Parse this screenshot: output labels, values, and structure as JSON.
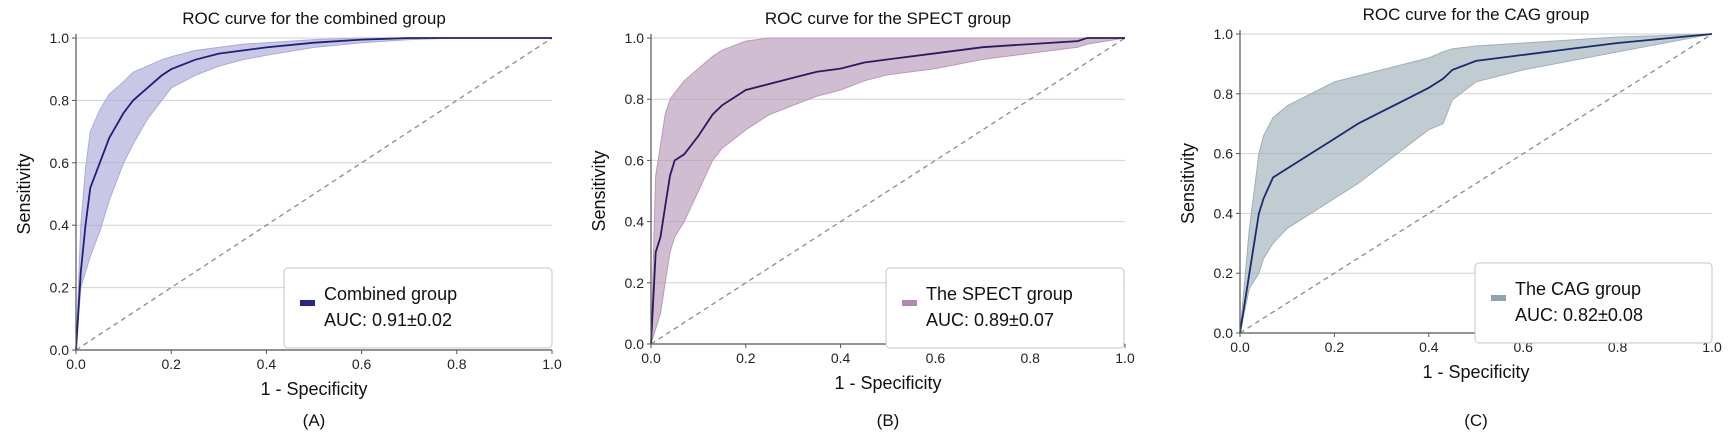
{
  "chart_data": [
    {
      "type": "line",
      "title": "ROC curve  for the combined group",
      "xlabel": "1 - Specificity",
      "ylabel": "Sensitivity",
      "panel_label": "(A)",
      "xlim": [
        0,
        1
      ],
      "ylim": [
        0,
        1
      ],
      "xticks": [
        "0.0",
        "0.2",
        "0.4",
        "0.6",
        "0.8",
        "1.0"
      ],
      "yticks": [
        "0.0",
        "0.2",
        "0.4",
        "0.6",
        "0.8",
        "1.0"
      ],
      "grid": "horizontal",
      "legend_position": "lower-right",
      "legend": {
        "name": "Combined group",
        "auc": "AUC: 0.91±0.02"
      },
      "colors": {
        "line": "#1f1f7a",
        "band": "#aaaad8",
        "legend_swatch": "#27278a"
      },
      "series": [
        {
          "x": [
            0.0,
            0.01,
            0.02,
            0.03,
            0.05,
            0.07,
            0.1,
            0.12,
            0.15,
            0.18,
            0.2,
            0.25,
            0.3,
            0.35,
            0.4,
            0.5,
            0.6,
            0.7,
            0.8,
            0.9,
            1.0
          ],
          "y": [
            0.0,
            0.25,
            0.4,
            0.52,
            0.6,
            0.68,
            0.76,
            0.8,
            0.84,
            0.88,
            0.9,
            0.93,
            0.95,
            0.96,
            0.97,
            0.985,
            0.995,
            1.0,
            1.0,
            1.0,
            1.0
          ],
          "lower": [
            0.0,
            0.2,
            0.25,
            0.3,
            0.38,
            0.48,
            0.6,
            0.66,
            0.74,
            0.8,
            0.84,
            0.88,
            0.91,
            0.93,
            0.945,
            0.97,
            0.985,
            0.995,
            1.0,
            1.0,
            1.0
          ],
          "upper": [
            0.0,
            0.4,
            0.58,
            0.7,
            0.77,
            0.82,
            0.86,
            0.89,
            0.91,
            0.93,
            0.94,
            0.96,
            0.97,
            0.98,
            0.985,
            0.995,
            1.0,
            1.0,
            1.0,
            1.0,
            1.0
          ]
        }
      ]
    },
    {
      "type": "line",
      "title": "ROC curve for the SPECT group",
      "xlabel": "1 - Specificity",
      "ylabel": "Sensitivity",
      "panel_label": "(B)",
      "xlim": [
        0,
        1
      ],
      "ylim": [
        0,
        1
      ],
      "xticks": [
        "0.0",
        "0.2",
        "0.4",
        "0.6",
        "0.8",
        "1.0"
      ],
      "yticks": [
        "0.0",
        "0.2",
        "0.4",
        "0.6",
        "0.8",
        "1.0"
      ],
      "grid": "horizontal",
      "legend_position": "lower-right",
      "legend": {
        "name": "The SPECT  group",
        "auc": "AUC: 0.89±0.07"
      },
      "colors": {
        "line": "#2a1a5e",
        "band": "#b89ab8",
        "legend_swatch": "#b08ab0"
      },
      "series": [
        {
          "x": [
            0.0,
            0.01,
            0.02,
            0.03,
            0.04,
            0.05,
            0.07,
            0.1,
            0.13,
            0.15,
            0.2,
            0.25,
            0.3,
            0.35,
            0.4,
            0.45,
            0.5,
            0.6,
            0.7,
            0.8,
            0.9,
            0.92,
            1.0
          ],
          "y": [
            0.0,
            0.3,
            0.35,
            0.45,
            0.55,
            0.6,
            0.62,
            0.68,
            0.75,
            0.78,
            0.83,
            0.85,
            0.87,
            0.89,
            0.9,
            0.92,
            0.93,
            0.95,
            0.97,
            0.98,
            0.99,
            1.0,
            1.0
          ],
          "lower": [
            0.0,
            0.05,
            0.1,
            0.2,
            0.3,
            0.35,
            0.4,
            0.5,
            0.6,
            0.64,
            0.7,
            0.75,
            0.78,
            0.81,
            0.83,
            0.86,
            0.88,
            0.9,
            0.93,
            0.95,
            0.97,
            0.98,
            1.0
          ],
          "upper": [
            0.0,
            0.55,
            0.65,
            0.75,
            0.8,
            0.82,
            0.86,
            0.9,
            0.94,
            0.96,
            0.99,
            1.0,
            1.0,
            1.0,
            1.0,
            1.0,
            1.0,
            1.0,
            1.0,
            1.0,
            1.0,
            1.0,
            1.0
          ]
        }
      ]
    },
    {
      "type": "line",
      "title": "ROC curve for the CAG group",
      "xlabel": "1 - Specificity",
      "ylabel": "Sensitivity",
      "panel_label": "(C)",
      "xlim": [
        0,
        1
      ],
      "ylim": [
        0,
        1
      ],
      "xticks": [
        "0.0",
        "0.2",
        "0.4",
        "0.6",
        "0.8",
        "1.0"
      ],
      "yticks": [
        "0.0",
        "0.2",
        "0.4",
        "0.6",
        "0.8",
        "1.0"
      ],
      "grid": "horizontal",
      "legend_position": "lower-right",
      "legend": {
        "name": "The CAG  group",
        "auc": "AUC: 0.82±0.08"
      },
      "colors": {
        "line": "#1a2a6e",
        "band": "#9fb0ba",
        "legend_swatch": "#8fa4b0"
      },
      "series": [
        {
          "x": [
            0.0,
            0.02,
            0.04,
            0.05,
            0.07,
            0.1,
            0.15,
            0.2,
            0.25,
            0.3,
            0.35,
            0.4,
            0.43,
            0.45,
            0.5,
            0.6,
            0.7,
            0.8,
            0.9,
            1.0
          ],
          "y": [
            0.0,
            0.2,
            0.4,
            0.45,
            0.52,
            0.55,
            0.6,
            0.65,
            0.7,
            0.74,
            0.78,
            0.82,
            0.85,
            0.88,
            0.91,
            0.93,
            0.95,
            0.97,
            0.985,
            1.0
          ],
          "lower": [
            0.0,
            0.15,
            0.2,
            0.25,
            0.3,
            0.35,
            0.4,
            0.45,
            0.5,
            0.56,
            0.62,
            0.68,
            0.7,
            0.78,
            0.84,
            0.88,
            0.91,
            0.94,
            0.97,
            1.0
          ],
          "upper": [
            0.0,
            0.35,
            0.6,
            0.66,
            0.72,
            0.76,
            0.8,
            0.84,
            0.86,
            0.88,
            0.9,
            0.92,
            0.94,
            0.95,
            0.96,
            0.97,
            0.98,
            0.99,
            0.995,
            1.0
          ]
        }
      ]
    }
  ]
}
